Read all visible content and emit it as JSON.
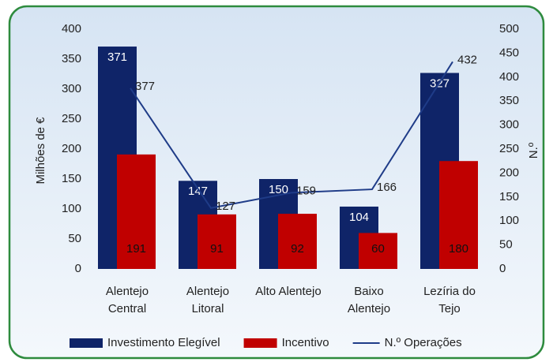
{
  "chart_data": {
    "type": "bar_line_combo",
    "categories": [
      "Alentejo\nCentral",
      "Alentejo\nLitoral",
      "Alto Alentejo",
      "Baixo\nAlentejo",
      "Lezíria do\nTejo"
    ],
    "series": [
      {
        "name": "Investimento Elegível",
        "type": "bar",
        "color": "#0f2468",
        "values": [
          371,
          147,
          150,
          104,
          327
        ]
      },
      {
        "name": "Incentivo",
        "type": "bar",
        "color": "#c00000",
        "values": [
          191,
          91,
          92,
          60,
          180
        ]
      },
      {
        "name": "N.º Operações",
        "type": "line",
        "axis": "y2",
        "color": "#1f3c88",
        "values": [
          377,
          127,
          159,
          166,
          432
        ]
      }
    ],
    "ylabel": "Milhões de €",
    "y2label": "N.º",
    "ylim": [
      0,
      400
    ],
    "yticks": [
      0,
      50,
      100,
      150,
      200,
      250,
      300,
      350,
      400
    ],
    "y2lim": [
      0,
      500
    ],
    "y2ticks": [
      0,
      50,
      100,
      150,
      200,
      250,
      300,
      350,
      400,
      450,
      500
    ],
    "legend": "bottom"
  }
}
